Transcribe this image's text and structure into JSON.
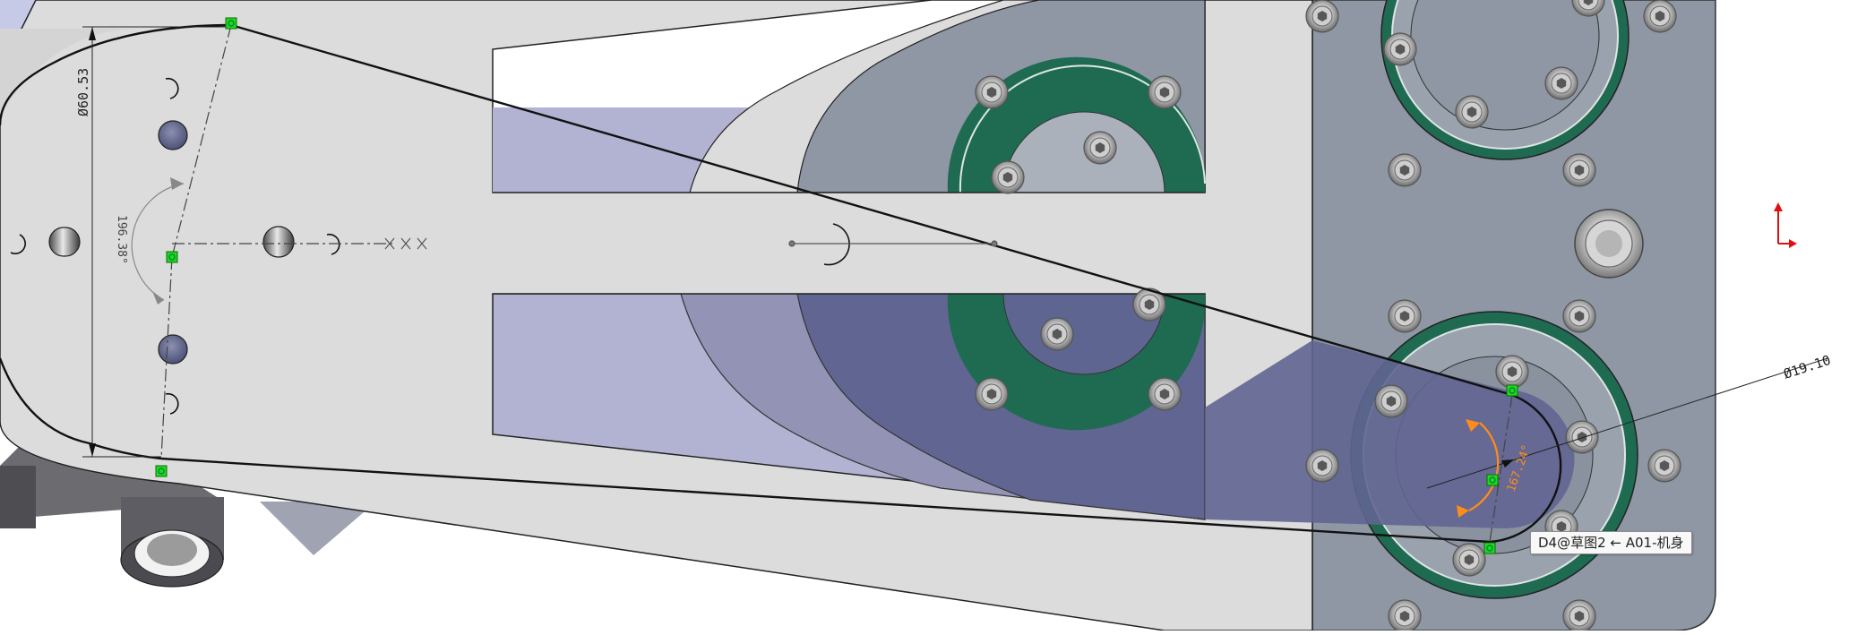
{
  "drawing": {
    "dimension_diameter_large": "Ø60.53",
    "dimension_diameter_small": "Ø19.10",
    "dimension_angle_left": "196.38°",
    "dimension_angle_right": "167.24°"
  },
  "tooltip": {
    "text": "D4@草图2 ← A01-机身"
  },
  "colors": {
    "sketch_line": "#111111",
    "relation_marker": "#1fd91f",
    "selection_highlight": "#ff8c1a",
    "axis_y": "#e01010",
    "axis_x": "#e01010",
    "ring_green": "#1e6b52",
    "plate_gray": "#dcdcdc",
    "motor_gray": "#8f97a4",
    "selected_face": "#616591"
  },
  "icons": {
    "triad": "coordinate-triad-icon",
    "relation": "coincident-relation-icon",
    "screw": "socket-head-screw-icon"
  }
}
